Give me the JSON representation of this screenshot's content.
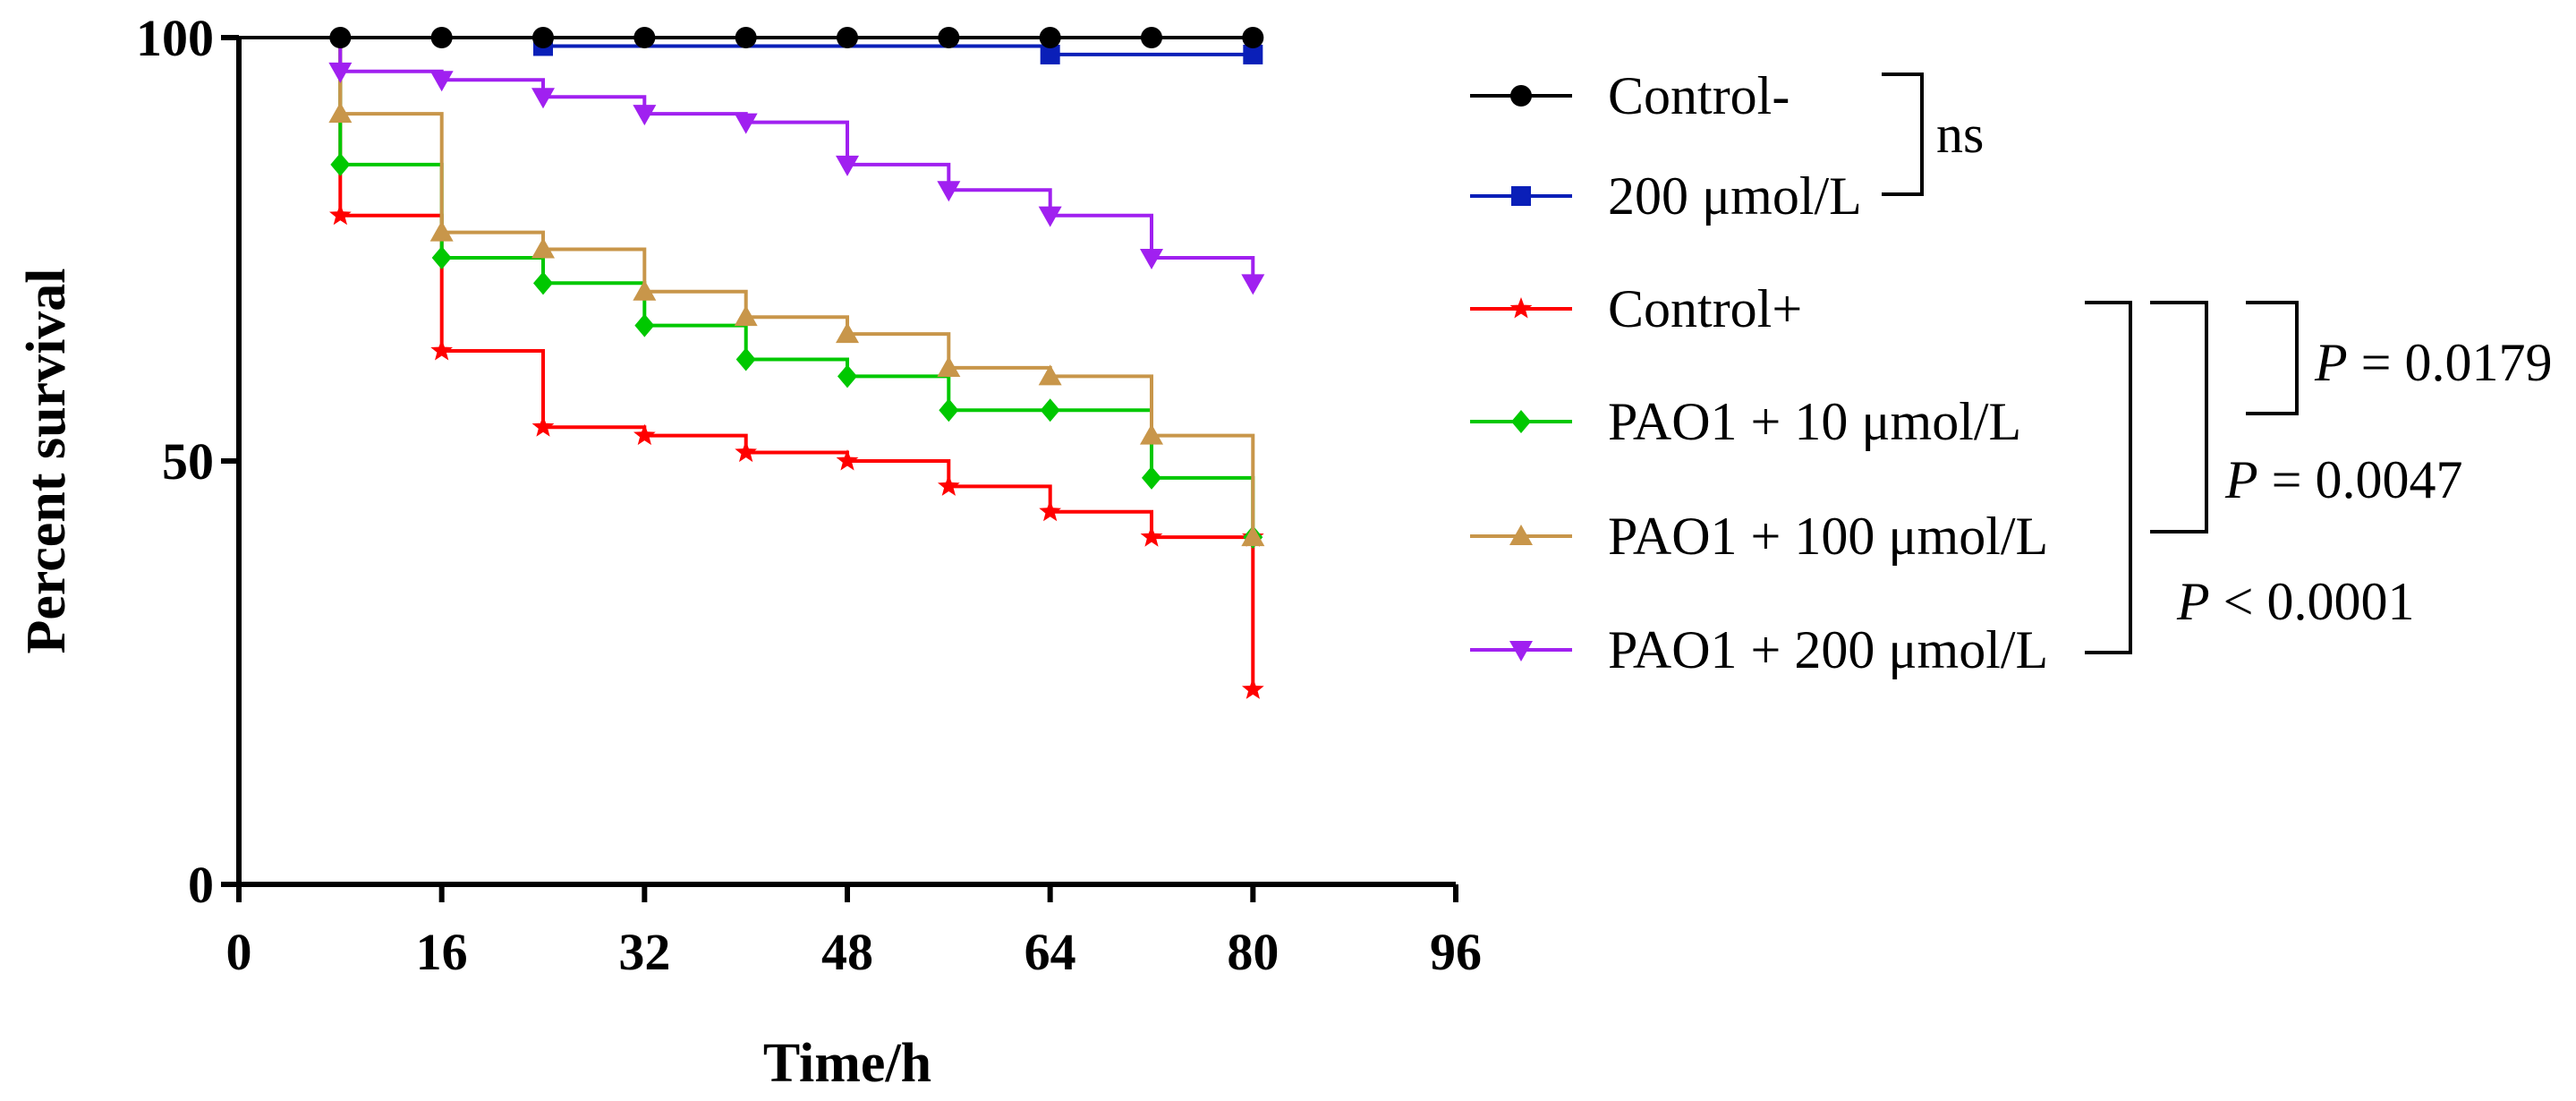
{
  "chart_data": {
    "type": "line",
    "subtype": "kaplan-meier-survival-step",
    "title": "",
    "xlabel": "Time/h",
    "ylabel": "Percent survival",
    "xlim": [
      0,
      96
    ],
    "ylim": [
      0,
      100
    ],
    "xticks": [
      0,
      16,
      32,
      48,
      64,
      80,
      96
    ],
    "yticks": [
      0,
      50,
      100
    ],
    "xtick_labels": [
      "0",
      "16",
      "32",
      "48",
      "64",
      "80",
      "96"
    ],
    "ytick_labels": [
      "0",
      "50",
      "100"
    ],
    "grid": false,
    "legend_position": "right",
    "series": [
      {
        "name": "Control-",
        "label": "Control-",
        "color": "#000000",
        "marker": "circle",
        "x": [
          0,
          8,
          16,
          24,
          32,
          40,
          48,
          56,
          64,
          72,
          80
        ],
        "y": [
          100,
          100,
          100,
          100,
          100,
          100,
          100,
          100,
          100,
          100,
          100
        ]
      },
      {
        "name": "200 μmol/L",
        "label": "200 μmol/L",
        "color": "#0a1fb8",
        "marker": "square",
        "x": [
          0,
          24,
          64,
          80
        ],
        "y": [
          100,
          99,
          98,
          98
        ]
      },
      {
        "name": "Control+",
        "label": "Control+",
        "color": "#ff0000",
        "marker": "star",
        "x": [
          0,
          8,
          16,
          24,
          32,
          40,
          48,
          56,
          64,
          72,
          80,
          80
        ],
        "y": [
          100,
          79,
          63,
          54,
          53,
          51,
          50,
          47,
          44,
          41,
          41,
          23
        ]
      },
      {
        "name": "PAO1 + 10 μmol/L",
        "label": "PAO1 + 10 μmol/L",
        "color": "#00c800",
        "marker": "diamond",
        "x": [
          0,
          8,
          16,
          24,
          32,
          40,
          48,
          56,
          64,
          72,
          80
        ],
        "y": [
          100,
          85,
          74,
          71,
          66,
          62,
          60,
          56,
          56,
          48,
          41
        ]
      },
      {
        "name": "PAO1 + 100 μmol/L",
        "label": "PAO1 + 100 μmol/L",
        "color": "#c8964a",
        "marker": "triangle-up",
        "x": [
          0,
          8,
          16,
          24,
          32,
          40,
          48,
          56,
          64,
          72,
          80
        ],
        "y": [
          100,
          91,
          77,
          75,
          70,
          67,
          65,
          61,
          60,
          53,
          41
        ]
      },
      {
        "name": "PAO1 + 200 μmol/L",
        "label": "PAO1 + 200 μmol/L",
        "color": "#a020f0",
        "marker": "triangle-down",
        "x": [
          0,
          8,
          16,
          24,
          32,
          40,
          48,
          56,
          64,
          72,
          80
        ],
        "y": [
          100,
          96,
          95,
          93,
          91,
          90,
          85,
          82,
          79,
          74,
          71
        ]
      }
    ],
    "annotations": [
      {
        "text": "ns",
        "compares": [
          "Control-",
          "200 μmol/L"
        ]
      },
      {
        "prefix": "P",
        "text": " = 0.0179",
        "compares": [
          "Control+",
          "PAO1 + 10 μmol/L"
        ]
      },
      {
        "prefix": "P",
        "text": " = 0.0047",
        "compares": [
          "Control+",
          "PAO1 + 100 μmol/L"
        ]
      },
      {
        "prefix": "P",
        "text": " < 0.0001",
        "compares": [
          "Control+",
          "PAO1 + 200 μmol/L"
        ]
      }
    ]
  }
}
